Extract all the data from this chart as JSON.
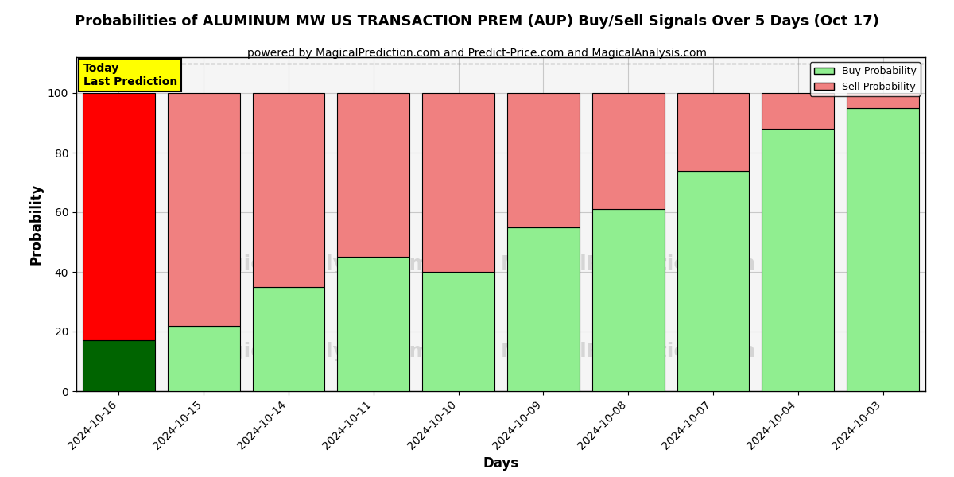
{
  "title": "Probabilities of ALUMINUM MW US TRANSACTION PREM (AUP) Buy/Sell Signals Over 5 Days (Oct 17)",
  "subtitle": "powered by MagicalPrediction.com and Predict-Price.com and MagicalAnalysis.com",
  "xlabel": "Days",
  "ylabel": "Probability",
  "days": [
    "2024-10-16",
    "2024-10-15",
    "2024-10-14",
    "2024-10-11",
    "2024-10-10",
    "2024-10-09",
    "2024-10-08",
    "2024-10-07",
    "2024-10-04",
    "2024-10-03"
  ],
  "buy_prob": [
    17,
    22,
    35,
    45,
    40,
    55,
    61,
    74,
    88,
    95
  ],
  "sell_prob": [
    83,
    78,
    65,
    55,
    60,
    45,
    39,
    26,
    12,
    5
  ],
  "buy_color_first": "#006400",
  "buy_color_rest": "#90EE90",
  "sell_color_first": "#FF0000",
  "sell_color_rest": "#F08080",
  "ylim": [
    0,
    112
  ],
  "yticks": [
    0,
    20,
    40,
    60,
    80,
    100
  ],
  "dashed_line_y": 110,
  "annotation_text": "Today\nLast Prediction",
  "annotation_bg": "#FFFF00",
  "grid_color": "#C8C8C8",
  "bar_width": 0.85,
  "figsize": [
    12.0,
    6.0
  ],
  "dpi": 100,
  "bg_color": "#F5F5F5"
}
